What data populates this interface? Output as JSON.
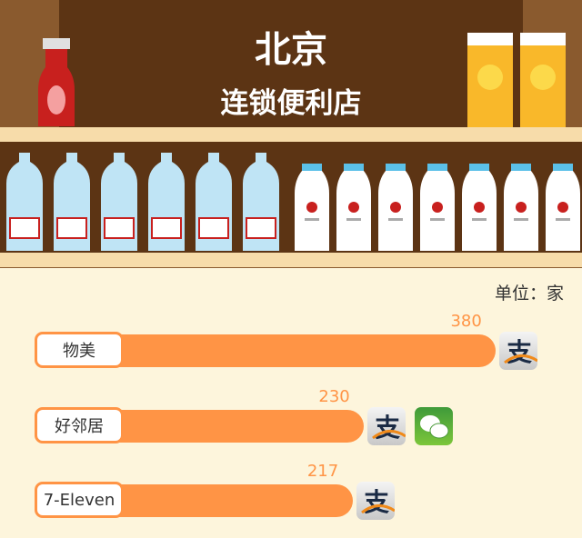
{
  "header": {
    "city": "北京",
    "subtitle": "连锁便利店"
  },
  "unit": "单位：家",
  "colors": {
    "bar": "#ff9445",
    "background": "#fdf5dc",
    "shelf_back": "#5c3414"
  },
  "chart_data": {
    "type": "bar",
    "orientation": "horizontal",
    "categories": [
      "物美",
      "好邻居",
      "7-Eleven"
    ],
    "values": [
      380,
      230,
      217
    ],
    "payment_icons": [
      [
        "alipay-icon"
      ],
      [
        "alipay-icon",
        "wechat-pay-icon"
      ],
      [
        "alipay-icon"
      ]
    ]
  }
}
